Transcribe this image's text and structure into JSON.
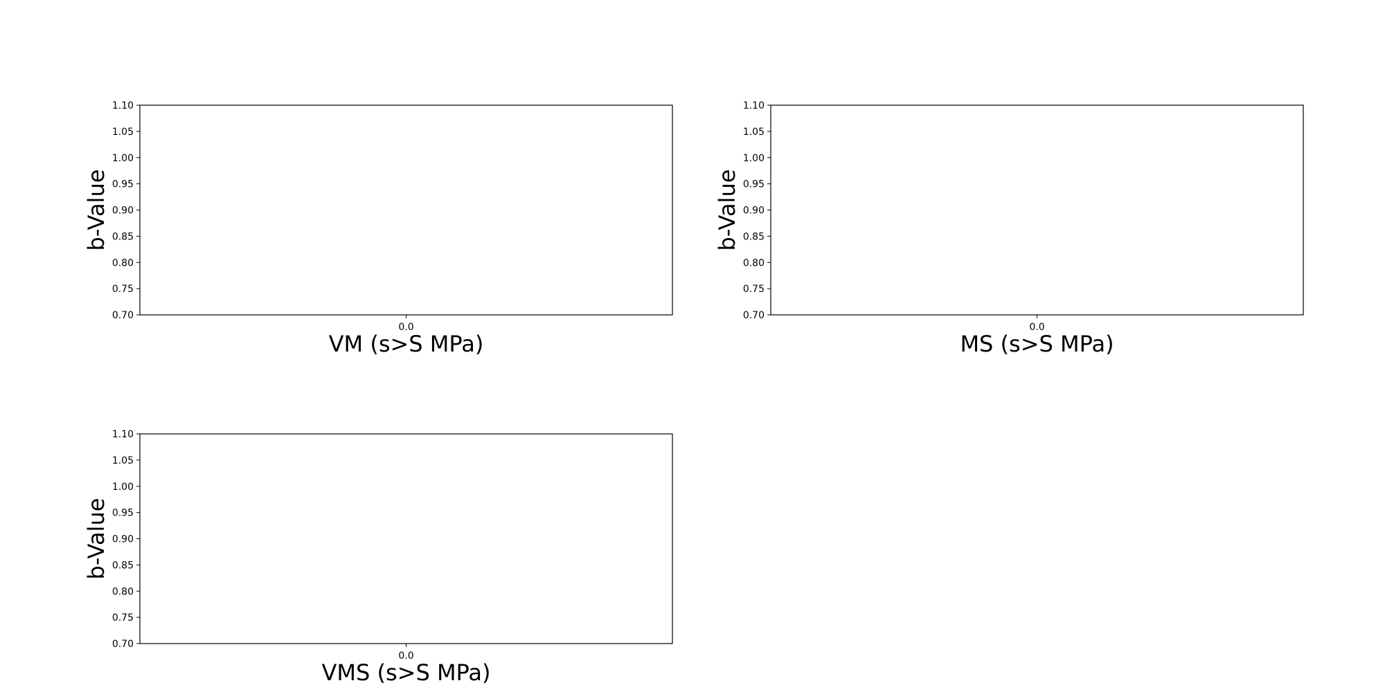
{
  "chart_data": [
    {
      "type": "scatter",
      "xlabel": "VM (s>S MPa)",
      "ylabel": "b-Value",
      "xticks": [
        "0.0"
      ],
      "yticks": [
        "0.70",
        "0.75",
        "0.80",
        "0.85",
        "0.90",
        "0.95",
        "1.00",
        "1.05",
        "1.10"
      ],
      "ylim": [
        0.7,
        1.1
      ],
      "grid": false,
      "series": []
    },
    {
      "type": "scatter",
      "xlabel": "MS (s>S MPa)",
      "ylabel": "b-Value",
      "xticks": [
        "0.0"
      ],
      "yticks": [
        "0.70",
        "0.75",
        "0.80",
        "0.85",
        "0.90",
        "0.95",
        "1.00",
        "1.05",
        "1.10"
      ],
      "ylim": [
        0.7,
        1.1
      ],
      "grid": false,
      "series": []
    },
    {
      "type": "scatter",
      "xlabel": "VMS (s>S MPa)",
      "ylabel": "b-Value",
      "xticks": [
        "0.0"
      ],
      "yticks": [
        "0.70",
        "0.75",
        "0.80",
        "0.85",
        "0.90",
        "0.95",
        "1.00",
        "1.05",
        "1.10"
      ],
      "ylim": [
        0.7,
        1.1
      ],
      "grid": false,
      "series": []
    }
  ]
}
